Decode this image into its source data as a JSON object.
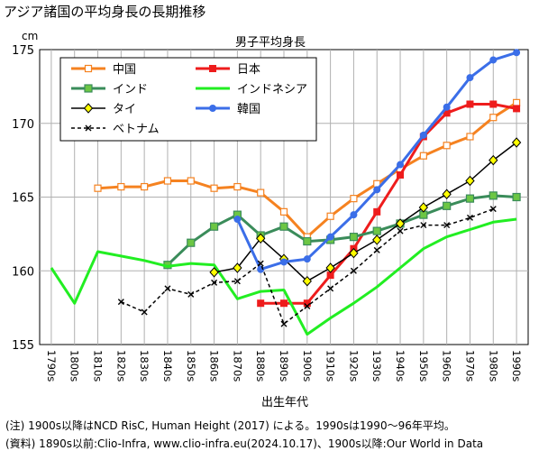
{
  "page": {
    "title": "アジア諸国の平均身長の長期推移"
  },
  "notes": {
    "note": "(注) 1900s以降はNCD RisC, Human Height (2017) による。1990sは1990～96年平均。",
    "source": "(資料) 1890s以前:Clio-Infra, www.clio-infra.eu(2024.10.17)、1900s以降:Our World in Data"
  },
  "colors": {
    "china": "#f58220",
    "japan": "#ee1c1c",
    "india": "#3a8c5a",
    "indonesia": "#22ee22",
    "thailand": "#000000",
    "korea": "#3b6ee8",
    "vietnam": "#000000",
    "thai_marker": "#ffff00",
    "grid": "#b0b0b0"
  },
  "chart_data": {
    "type": "line",
    "title": "男子平均身長",
    "ylabel": "cm",
    "xlabel": "出生年代",
    "ylim": [
      155,
      175
    ],
    "yticks": [
      155,
      160,
      165,
      170,
      175
    ],
    "categories": [
      "1790s",
      "1800s",
      "1810s",
      "1820s",
      "1830s",
      "1840s",
      "1850s",
      "1860s",
      "1870s",
      "1880s",
      "1890s",
      "1900s",
      "1910s",
      "1920s",
      "1930s",
      "1940s",
      "1950s",
      "1960s",
      "1970s",
      "1980s",
      "1990s"
    ],
    "series": [
      {
        "key": "china",
        "name": "中国",
        "marker": "square-open",
        "style": "solid",
        "values": [
          null,
          null,
          165.6,
          165.7,
          165.7,
          166.1,
          166.1,
          165.6,
          165.7,
          165.3,
          164.0,
          162.3,
          163.7,
          164.9,
          165.9,
          166.9,
          167.8,
          168.5,
          169.1,
          170.4,
          171.4
        ]
      },
      {
        "key": "japan",
        "name": "日本",
        "marker": "square-filled",
        "style": "solid",
        "values": [
          null,
          null,
          null,
          null,
          null,
          null,
          null,
          null,
          null,
          157.8,
          157.8,
          157.8,
          159.7,
          161.5,
          164.0,
          166.5,
          169.1,
          170.7,
          171.3,
          171.3,
          171.0
        ]
      },
      {
        "key": "india",
        "name": "インド",
        "marker": "square-green",
        "style": "solid",
        "values": [
          null,
          null,
          null,
          null,
          null,
          160.4,
          161.9,
          163.0,
          163.8,
          162.4,
          163.0,
          162.0,
          162.1,
          162.3,
          162.7,
          163.2,
          163.8,
          164.4,
          164.9,
          165.1,
          165.0
        ]
      },
      {
        "key": "indonesia",
        "name": "インドネシア",
        "marker": "none",
        "style": "solid",
        "values": [
          160.2,
          157.8,
          161.3,
          161.0,
          160.7,
          160.3,
          160.5,
          160.4,
          158.1,
          158.6,
          158.7,
          155.7,
          156.8,
          157.8,
          158.9,
          160.2,
          161.5,
          162.3,
          162.8,
          163.3,
          163.5
        ]
      },
      {
        "key": "thailand",
        "name": "タイ",
        "marker": "diamond-yellow",
        "style": "solid",
        "values": [
          null,
          null,
          null,
          null,
          null,
          null,
          null,
          159.9,
          160.2,
          162.2,
          160.8,
          159.3,
          160.2,
          161.2,
          162.1,
          163.2,
          164.3,
          165.2,
          166.1,
          167.5,
          168.7
        ]
      },
      {
        "key": "korea",
        "name": "韓国",
        "marker": "circle-filled",
        "style": "solid",
        "values": [
          null,
          null,
          null,
          null,
          null,
          null,
          null,
          null,
          163.5,
          160.1,
          160.6,
          160.8,
          162.3,
          163.8,
          165.5,
          167.2,
          169.2,
          171.1,
          173.1,
          174.3,
          174.8
        ]
      },
      {
        "key": "vietnam",
        "name": "ベトナム",
        "marker": "x",
        "style": "dashed",
        "values": [
          null,
          null,
          null,
          157.9,
          157.2,
          158.8,
          158.4,
          159.2,
          159.3,
          160.5,
          156.4,
          157.6,
          158.8,
          160.0,
          161.4,
          162.7,
          163.1,
          163.1,
          163.6,
          164.2,
          null
        ]
      }
    ],
    "legend": {
      "placement": "top-left",
      "order": [
        "china",
        "japan",
        "india",
        "indonesia",
        "thailand",
        "korea",
        "vietnam"
      ]
    }
  }
}
